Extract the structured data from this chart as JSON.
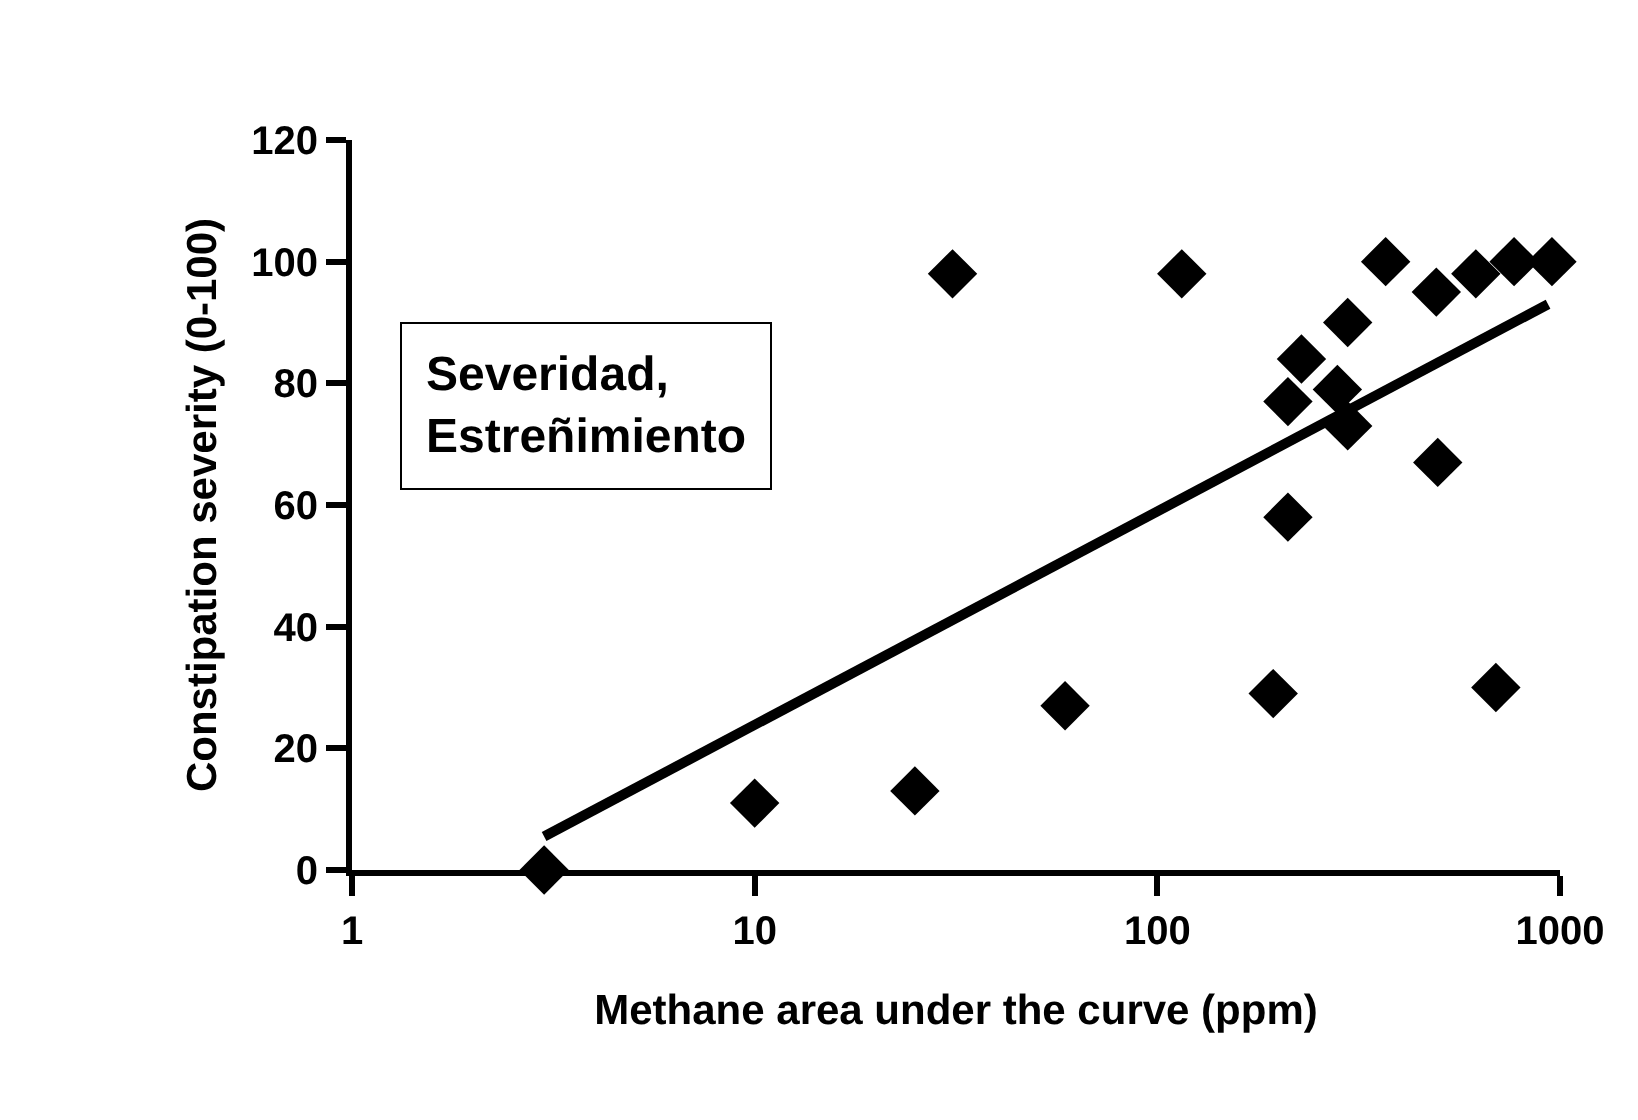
{
  "chart_data": {
    "type": "scatter",
    "xlabel": "Methane area under the curve (ppm)",
    "ylabel": "Constipation severity (0-100)",
    "annotations": [
      "Severidad,\nEstreñimiento"
    ],
    "log": "x",
    "xlim": [
      1,
      1000
    ],
    "xticks": [
      1,
      10,
      100,
      1000
    ],
    "ylim": [
      0,
      120
    ],
    "yticks": [
      0,
      20,
      40,
      60,
      80,
      100,
      120
    ],
    "marker": "diamond",
    "series": [
      {
        "color": "#000000",
        "x": [
          3,
          10,
          25,
          31,
          59,
          115,
          194,
          211,
          211,
          228,
          280,
          297,
          297,
          369,
          497,
          493,
          618,
          693,
          769,
          955
        ],
        "values": [
          0,
          11,
          13,
          98,
          27,
          98,
          29,
          58,
          77,
          84,
          79,
          73,
          90,
          100,
          67,
          95,
          98,
          30,
          100,
          100
        ]
      },
      {
        "type": "line",
        "color": "#000000",
        "line_style": "solid",
        "marker": "none",
        "x": [
          3,
          934
        ],
        "values": [
          5.5,
          93
        ]
      }
    ]
  }
}
